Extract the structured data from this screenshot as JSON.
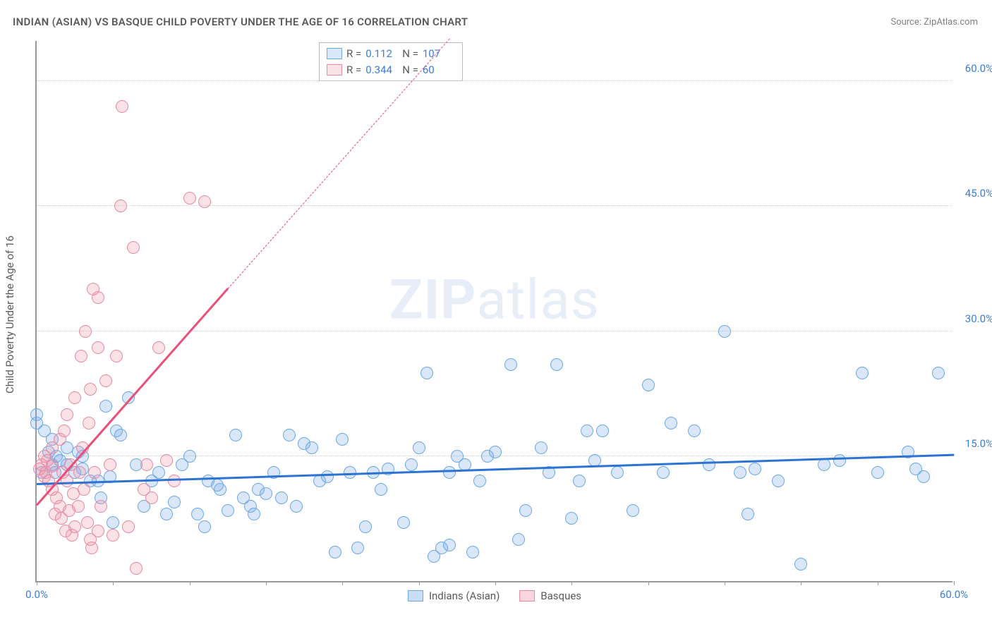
{
  "title": "INDIAN (ASIAN) VS BASQUE CHILD POVERTY UNDER THE AGE OF 16 CORRELATION CHART",
  "source": "Source: ZipAtlas.com",
  "watermark_bold": "ZIP",
  "watermark_rest": "atlas",
  "y_axis_title": "Child Poverty Under the Age of 16",
  "chart": {
    "type": "scatter",
    "xlim": [
      0,
      60
    ],
    "ylim": [
      0,
      65
    ],
    "y_ticks": [
      15,
      30,
      45,
      60
    ],
    "y_tick_labels": [
      "15.0%",
      "30.0%",
      "45.0%",
      "60.0%"
    ],
    "x_ticks": [
      0,
      5,
      10,
      15,
      20,
      25,
      30,
      35,
      40,
      45,
      50,
      55,
      60
    ],
    "x_label_start": "0.0%",
    "x_label_end": "60.0%",
    "background_color": "#ffffff",
    "grid_color": "#cccccc",
    "axis_color": "#999999",
    "tick_label_color": "#3b7dd8",
    "marker_radius": 9,
    "marker_border_width": 1.5,
    "series": [
      {
        "name": "Indians (Asian)",
        "fill": "rgba(120,170,230,0.28)",
        "stroke": "#6aa8e8",
        "R": "0.112",
        "N": "107",
        "trend": {
          "x1": 0,
          "y1": 11.5,
          "x2": 60,
          "y2": 15.0,
          "color": "#2d73d2",
          "width": 3,
          "dashed": false
        },
        "points": [
          [
            0,
            20
          ],
          [
            0,
            19
          ],
          [
            0.3,
            13
          ],
          [
            0.5,
            18
          ],
          [
            0.8,
            15.5
          ],
          [
            1,
            14
          ],
          [
            1,
            17
          ],
          [
            1.2,
            13
          ],
          [
            1.3,
            15
          ],
          [
            1.5,
            14.5
          ],
          [
            2,
            16
          ],
          [
            2,
            14
          ],
          [
            2.5,
            13
          ],
          [
            2.7,
            15.5
          ],
          [
            3,
            15
          ],
          [
            3,
            13.5
          ],
          [
            3.5,
            12
          ],
          [
            4,
            12
          ],
          [
            4.2,
            10
          ],
          [
            4.5,
            21
          ],
          [
            4.8,
            12.5
          ],
          [
            5,
            7
          ],
          [
            5.2,
            18
          ],
          [
            5.5,
            17.5
          ],
          [
            6,
            22
          ],
          [
            6.5,
            14
          ],
          [
            7,
            9
          ],
          [
            7.5,
            12
          ],
          [
            8,
            13
          ],
          [
            8.5,
            8
          ],
          [
            9,
            9.5
          ],
          [
            9.5,
            14
          ],
          [
            10,
            15
          ],
          [
            10.5,
            8
          ],
          [
            11,
            6.5
          ],
          [
            11.2,
            12
          ],
          [
            11.8,
            11.5
          ],
          [
            12,
            11
          ],
          [
            12.5,
            8.5
          ],
          [
            13,
            17.5
          ],
          [
            13.5,
            10
          ],
          [
            14,
            9
          ],
          [
            14.2,
            8
          ],
          [
            14.5,
            11
          ],
          [
            15,
            10.5
          ],
          [
            15.5,
            13
          ],
          [
            16,
            10
          ],
          [
            16.5,
            17.5
          ],
          [
            17,
            9
          ],
          [
            17.5,
            16.5
          ],
          [
            18,
            16
          ],
          [
            18.5,
            12
          ],
          [
            19,
            12.5
          ],
          [
            19.5,
            3.5
          ],
          [
            20,
            17
          ],
          [
            20.5,
            13
          ],
          [
            21,
            4
          ],
          [
            21.5,
            6.5
          ],
          [
            22,
            13
          ],
          [
            22.5,
            11
          ],
          [
            23,
            13.5
          ],
          [
            24,
            7
          ],
          [
            24.5,
            14
          ],
          [
            25,
            16
          ],
          [
            25.5,
            25
          ],
          [
            26,
            3
          ],
          [
            26.5,
            4
          ],
          [
            27,
            13
          ],
          [
            27,
            4.3
          ],
          [
            27.5,
            15
          ],
          [
            28,
            14
          ],
          [
            28.5,
            3.5
          ],
          [
            29,
            12
          ],
          [
            29.5,
            15
          ],
          [
            30,
            15.5
          ],
          [
            31,
            26
          ],
          [
            31.5,
            5
          ],
          [
            32,
            8.5
          ],
          [
            33,
            16
          ],
          [
            33.5,
            13
          ],
          [
            34,
            26
          ],
          [
            35,
            7.5
          ],
          [
            35.5,
            12
          ],
          [
            36,
            18
          ],
          [
            36.5,
            14.5
          ],
          [
            37,
            18
          ],
          [
            38,
            13
          ],
          [
            39,
            8.5
          ],
          [
            40,
            23.5
          ],
          [
            41,
            13
          ],
          [
            41.5,
            19
          ],
          [
            43,
            18
          ],
          [
            44,
            14
          ],
          [
            45,
            30
          ],
          [
            46,
            13
          ],
          [
            46.5,
            8
          ],
          [
            47,
            13.5
          ],
          [
            48.5,
            12
          ],
          [
            50,
            2
          ],
          [
            51.5,
            14
          ],
          [
            52.5,
            14.5
          ],
          [
            54,
            25
          ],
          [
            55,
            13
          ],
          [
            57,
            15.5
          ],
          [
            57.5,
            13.5
          ],
          [
            58,
            12.5
          ],
          [
            59,
            25
          ]
        ]
      },
      {
        "name": "Basques",
        "fill": "rgba(240,150,170,0.28)",
        "stroke": "#e68aa3",
        "R": "0.344",
        "N": "60",
        "trend": {
          "x1": 0,
          "y1": 9,
          "x2": 12.5,
          "y2": 35,
          "color": "#e84f7a",
          "width": 3,
          "dashed": false
        },
        "trend_ext": {
          "x1": 12.5,
          "y1": 35,
          "x2": 27,
          "y2": 65,
          "color": "#e84f7a",
          "width": 1.5,
          "dashed": true
        },
        "points": [
          [
            0.2,
            13.5
          ],
          [
            0.3,
            14
          ],
          [
            0.5,
            15
          ],
          [
            0.5,
            12.5
          ],
          [
            0.6,
            13
          ],
          [
            0.7,
            14.5
          ],
          [
            0.8,
            12
          ],
          [
            1,
            11
          ],
          [
            1,
            13.8
          ],
          [
            1,
            16
          ],
          [
            1.2,
            8
          ],
          [
            1.3,
            10
          ],
          [
            1.5,
            9
          ],
          [
            1.5,
            17
          ],
          [
            1.6,
            7.5
          ],
          [
            1.7,
            13
          ],
          [
            1.8,
            18
          ],
          [
            1.9,
            6
          ],
          [
            2,
            12
          ],
          [
            2,
            20
          ],
          [
            2.1,
            8.5
          ],
          [
            2.2,
            14
          ],
          [
            2.3,
            5.5
          ],
          [
            2.4,
            10.5
          ],
          [
            2.5,
            22
          ],
          [
            2.5,
            6.5
          ],
          [
            2.7,
            9
          ],
          [
            2.8,
            13
          ],
          [
            2.9,
            27
          ],
          [
            3,
            16
          ],
          [
            3.1,
            11
          ],
          [
            3.2,
            30
          ],
          [
            3.3,
            7
          ],
          [
            3.4,
            19
          ],
          [
            3.5,
            5
          ],
          [
            3.5,
            23
          ],
          [
            3.7,
            35
          ],
          [
            3.8,
            13
          ],
          [
            4,
            6
          ],
          [
            4,
            28
          ],
          [
            4,
            34
          ],
          [
            4.2,
            9
          ],
          [
            4.5,
            24
          ],
          [
            4.8,
            14
          ],
          [
            5,
            5.5
          ],
          [
            5.2,
            27
          ],
          [
            5.5,
            45
          ],
          [
            5.6,
            57
          ],
          [
            6,
            6.5
          ],
          [
            6.3,
            40
          ],
          [
            7,
            11
          ],
          [
            7.2,
            14
          ],
          [
            7.5,
            10
          ],
          [
            8,
            28
          ],
          [
            8.5,
            14.5
          ],
          [
            9,
            12
          ],
          [
            10,
            46
          ],
          [
            11,
            45.5
          ],
          [
            6.5,
            1.5
          ],
          [
            3.6,
            4
          ]
        ]
      }
    ]
  },
  "bottom_legend": [
    {
      "label": "Indians (Asian)",
      "fill": "rgba(120,170,230,0.4)",
      "stroke": "#6aa8e8"
    },
    {
      "label": "Basques",
      "fill": "rgba(240,150,170,0.4)",
      "stroke": "#e68aa3"
    }
  ]
}
